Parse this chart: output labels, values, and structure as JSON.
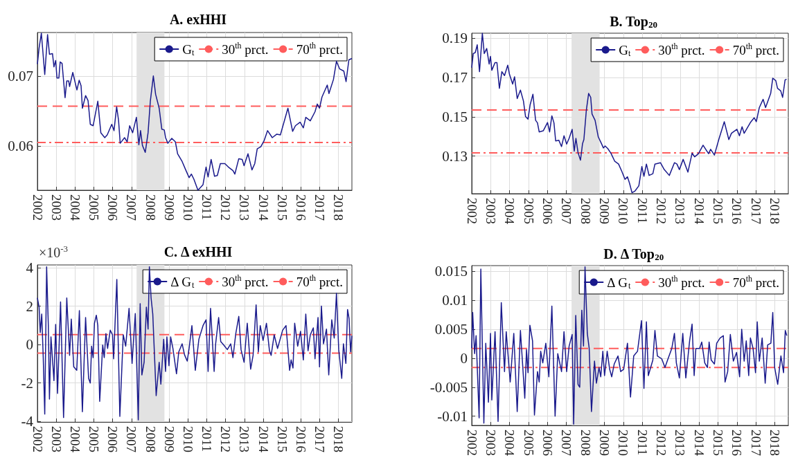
{
  "chart_data": [
    {
      "type": "line",
      "title": "A. exHHI",
      "xlim": [
        2002,
        2018.71
      ],
      "xticks": [
        2002,
        2003,
        2004,
        2005,
        2006,
        2007,
        2008,
        2009,
        2010,
        2011,
        2012,
        2013,
        2014,
        2015,
        2016,
        2017,
        2018
      ],
      "ylim": [
        0.0537,
        0.0762
      ],
      "yticks": [
        0.06,
        0.07
      ],
      "grid": true,
      "legend": "top right",
      "marker": "none",
      "series": [
        {
          "name": "G$_{t}$",
          "color": "#1a1a8c",
          "x": [
            2002.0,
            2002.09,
            2002.21,
            2002.39,
            2002.54,
            2002.64,
            2002.8,
            2002.88,
            2002.97,
            2003.04,
            2003.14,
            2003.21,
            2003.31,
            2003.47,
            2003.56,
            2003.66,
            2003.71,
            2003.88,
            2004.1,
            2004.22,
            2004.32,
            2004.39,
            2004.56,
            2004.69,
            2004.81,
            2004.96,
            2005.21,
            2005.37,
            2005.58,
            2005.71,
            2005.95,
            2006.07,
            2006.21,
            2006.31,
            2006.4,
            2006.63,
            2006.77,
            2006.9,
            2007.06,
            2007.26,
            2007.39,
            2007.48,
            2007.58,
            2007.73,
            2007.88,
            2008.0,
            2008.16,
            2008.28,
            2008.47,
            2008.61,
            2008.74,
            2008.81,
            2008.93,
            2009.14,
            2009.33,
            2009.45,
            2009.69,
            2009.88,
            2010.06,
            2010.18,
            2010.31,
            2010.53,
            2010.8,
            2010.96,
            2011.07,
            2011.23,
            2011.41,
            2011.56,
            2011.72,
            2011.96,
            2012.15,
            2012.39,
            2012.49,
            2012.7,
            2012.88,
            2012.98,
            2013.19,
            2013.4,
            2013.55,
            2013.68,
            2013.87,
            2014.05,
            2014.23,
            2014.48,
            2014.72,
            2014.91,
            2015.31,
            2015.56,
            2015.71,
            2015.96,
            2016.13,
            2016.26,
            2016.5,
            2016.75,
            2016.87,
            2016.99,
            2017.12,
            2017.4,
            2017.49,
            2017.73,
            2017.89,
            2018.06,
            2018.28,
            2018.4,
            2018.55,
            2018.71
          ],
          "values": [
            0.0717,
            0.074,
            0.0761,
            0.0702,
            0.0759,
            0.0731,
            0.0732,
            0.0713,
            0.0722,
            0.0697,
            0.0697,
            0.072,
            0.0718,
            0.0669,
            0.0693,
            0.0693,
            0.0685,
            0.0705,
            0.068,
            0.0694,
            0.0686,
            0.0654,
            0.0672,
            0.0665,
            0.0631,
            0.0629,
            0.0664,
            0.0619,
            0.0612,
            0.0616,
            0.0631,
            0.0622,
            0.0656,
            0.0637,
            0.0604,
            0.0612,
            0.0606,
            0.0629,
            0.0619,
            0.0641,
            0.0602,
            0.0622,
            0.0601,
            0.0591,
            0.0619,
            0.0664,
            0.07,
            0.0674,
            0.0654,
            0.0624,
            0.0623,
            0.0612,
            0.0604,
            0.0611,
            0.0606,
            0.0589,
            0.0578,
            0.0566,
            0.0555,
            0.056,
            0.0553,
            0.0537,
            0.0545,
            0.057,
            0.0556,
            0.0581,
            0.0557,
            0.0558,
            0.0575,
            0.0575,
            0.057,
            0.0565,
            0.056,
            0.0582,
            0.0581,
            0.0572,
            0.0589,
            0.0566,
            0.0575,
            0.0596,
            0.0599,
            0.0608,
            0.0622,
            0.0612,
            0.0617,
            0.0616,
            0.0654,
            0.0621,
            0.0629,
            0.0634,
            0.0626,
            0.0641,
            0.0636,
            0.0649,
            0.066,
            0.0654,
            0.067,
            0.0687,
            0.0675,
            0.0695,
            0.0721,
            0.071,
            0.0707,
            0.0692,
            0.0723,
            0.0725
          ]
        }
      ],
      "ref_lines": [
        {
          "axis": "y",
          "value": 0.0605,
          "label": "30$^{th}$ prct.",
          "color": "#ff5c5c",
          "line_style": "dashdot"
        },
        {
          "axis": "y",
          "value": 0.0657,
          "label": "70$^{th}$ prct.",
          "color": "#ff5c5c",
          "line_style": "dashed"
        }
      ],
      "bands": [
        {
          "axis": "x",
          "from": 2007.27,
          "to": 2008.75,
          "color": "#e2e2e2"
        }
      ]
    },
    {
      "type": "line",
      "title": "B. Top$_{20}$",
      "xlim": [
        2002,
        2018.71
      ],
      "xticks": [
        2002,
        2003,
        2004,
        2005,
        2006,
        2007,
        2008,
        2009,
        2010,
        2011,
        2012,
        2013,
        2014,
        2015,
        2016,
        2017,
        2018
      ],
      "ylim": [
        0.1108,
        0.1926
      ],
      "yticks": [
        0.13,
        0.15,
        0.17,
        0.19
      ],
      "grid": true,
      "legend": "top right",
      "marker": "none",
      "series": [
        {
          "name": "G$_{t}$",
          "color": "#1a1a8c",
          "x": [
            2002.0,
            2002.08,
            2002.19,
            2002.29,
            2002.41,
            2002.56,
            2002.66,
            2002.79,
            2002.92,
            2002.99,
            2003.06,
            2003.23,
            2003.33,
            2003.46,
            2003.59,
            2003.73,
            2003.9,
            2003.99,
            2004.16,
            2004.26,
            2004.4,
            2004.57,
            2004.73,
            2004.84,
            2004.97,
            2005.08,
            2005.23,
            2005.37,
            2005.47,
            2005.56,
            2005.78,
            2006.0,
            2006.11,
            2006.23,
            2006.34,
            2006.43,
            2006.6,
            2006.74,
            2006.87,
            2007.01,
            2007.14,
            2007.3,
            2007.41,
            2007.5,
            2007.61,
            2007.74,
            2007.85,
            2007.92,
            2008.05,
            2008.17,
            2008.28,
            2008.35,
            2008.51,
            2008.68,
            2008.81,
            2008.95,
            2009.04,
            2009.18,
            2009.35,
            2009.55,
            2009.75,
            2009.93,
            2010.09,
            2010.22,
            2010.33,
            2010.46,
            2010.62,
            2010.82,
            2010.98,
            2011.09,
            2011.22,
            2011.36,
            2011.56,
            2011.67,
            2011.96,
            2012.16,
            2012.43,
            2012.7,
            2012.83,
            2012.96,
            2013.16,
            2013.41,
            2013.63,
            2013.77,
            2013.97,
            2014.21,
            2014.5,
            2014.61,
            2014.81,
            2015.04,
            2015.33,
            2015.57,
            2015.71,
            2016.0,
            2016.13,
            2016.27,
            2016.38,
            2016.71,
            2016.91,
            2017.02,
            2017.18,
            2017.38,
            2017.51,
            2017.78,
            2017.89,
            2018.05,
            2018.14,
            2018.31,
            2018.41,
            2018.54,
            2018.62
          ],
          "values": [
            0.175,
            0.1822,
            0.1828,
            0.1867,
            0.173,
            0.1926,
            0.1822,
            0.1848,
            0.1769,
            0.1808,
            0.1737,
            0.1776,
            0.1776,
            0.1645,
            0.173,
            0.171,
            0.1763,
            0.1717,
            0.1667,
            0.1704,
            0.1593,
            0.1636,
            0.158,
            0.1501,
            0.1488,
            0.156,
            0.1615,
            0.1482,
            0.1469,
            0.1423,
            0.1429,
            0.1471,
            0.1423,
            0.1505,
            0.1469,
            0.1377,
            0.138,
            0.1348,
            0.1403,
            0.1361,
            0.139,
            0.1436,
            0.1325,
            0.139,
            0.1318,
            0.1279,
            0.1364,
            0.1384,
            0.1534,
            0.1619,
            0.1599,
            0.1514,
            0.1482,
            0.1397,
            0.1371,
            0.1341,
            0.1351,
            0.1338,
            0.1314,
            0.1273,
            0.1259,
            0.122,
            0.1181,
            0.1194,
            0.1161,
            0.1113,
            0.1122,
            0.1148,
            0.1246,
            0.1197,
            0.1259,
            0.1201,
            0.121,
            0.1259,
            0.1266,
            0.1231,
            0.1201,
            0.1266,
            0.1259,
            0.1231,
            0.1283,
            0.1218,
            0.1314,
            0.1296,
            0.1312,
            0.1355,
            0.1312,
            0.1334,
            0.1305,
            0.1384,
            0.1475,
            0.1384,
            0.1416,
            0.1436,
            0.1403,
            0.1449,
            0.1416,
            0.1471,
            0.1495,
            0.1475,
            0.1547,
            0.1589,
            0.1547,
            0.1619,
            0.1697,
            0.1684,
            0.1645,
            0.1632,
            0.1599,
            0.1688,
            0.1691
          ]
        }
      ],
      "ref_lines": [
        {
          "axis": "y",
          "value": 0.1316,
          "label": "30$^{th}$ prct.",
          "color": "#ff5c5c",
          "line_style": "dashdot"
        },
        {
          "axis": "y",
          "value": 0.1535,
          "label": "70$^{th}$ prct.",
          "color": "#ff5c5c",
          "line_style": "dashed"
        }
      ],
      "bands": [
        {
          "axis": "x",
          "from": 2007.27,
          "to": 2008.75,
          "color": "#e2e2e2"
        }
      ]
    },
    {
      "type": "line",
      "title": "C. Δ exHHI",
      "annotations": [
        "×10$^{-3}$"
      ],
      "xlim": [
        2002,
        2018.71
      ],
      "xticks": [
        2002,
        2003,
        2004,
        2005,
        2006,
        2007,
        2008,
        2009,
        2010,
        2011,
        2012,
        2013,
        2014,
        2015,
        2016,
        2017,
        2018
      ],
      "ylim": [
        -4.03,
        4.15
      ],
      "yticks": [
        -4,
        -2,
        0,
        2,
        4
      ],
      "grid": true,
      "legend": "top right",
      "marker": "none",
      "series": [
        {
          "name": "Δ G$_{t}$",
          "color": "#1a1a8c",
          "x": [
            2002.0,
            2002.09,
            2002.15,
            2002.23,
            2002.31,
            2002.39,
            2002.49,
            2002.58,
            2002.64,
            2002.72,
            2002.88,
            2002.97,
            2003.07,
            2003.23,
            2003.39,
            2003.56,
            2003.71,
            2003.8,
            2003.93,
            2004.09,
            2004.23,
            2004.39,
            2004.56,
            2004.72,
            2004.81,
            2004.88,
            2004.96,
            2005.03,
            2005.13,
            2005.21,
            2005.31,
            2005.47,
            2005.55,
            2005.64,
            2005.73,
            2005.87,
            2005.99,
            2006.05,
            2006.22,
            2006.38,
            2006.56,
            2006.69,
            2006.87,
            2007.03,
            2007.2,
            2007.36,
            2007.46,
            2007.55,
            2007.67,
            2007.79,
            2007.88,
            2007.95,
            2008.04,
            2008.13,
            2008.31,
            2008.47,
            2008.56,
            2008.71,
            2008.81,
            2008.88,
            2008.99,
            2009.08,
            2009.2,
            2009.39,
            2009.51,
            2009.69,
            2009.82,
            2009.96,
            2010.06,
            2010.21,
            2010.39,
            2010.58,
            2010.8,
            2010.96,
            2011.07,
            2011.2,
            2011.39,
            2011.47,
            2011.63,
            2011.74,
            2011.9,
            2012.09,
            2012.27,
            2012.39,
            2012.54,
            2012.7,
            2012.82,
            2012.98,
            2013.15,
            2013.33,
            2013.46,
            2013.62,
            2013.74,
            2013.84,
            2013.99,
            2014.17,
            2014.33,
            2014.42,
            2014.58,
            2014.76,
            2015.03,
            2015.21,
            2015.4,
            2015.48,
            2015.58,
            2015.67,
            2015.83,
            2015.98,
            2016.13,
            2016.26,
            2016.38,
            2016.5,
            2016.66,
            2016.75,
            2016.91,
            2016.99,
            2017.09,
            2017.2,
            2017.36,
            2017.48,
            2017.64,
            2017.77,
            2017.89,
            2018.01,
            2018.17,
            2018.26,
            2018.39,
            2018.48,
            2018.56,
            2018.64,
            2018.71
          ],
          "values": [
            2.43,
            1.95,
            0.63,
            1.59,
            -0.68,
            -3.62,
            4.05,
            0.99,
            -2.84,
            0.4,
            -1.88,
            1.05,
            -2.54,
            2.22,
            -3.8,
            2.43,
            -0.56,
            1.33,
            -1.16,
            -1.34,
            1.77,
            -3.5,
            1.41,
            -1.76,
            -2.0,
            -0.08,
            -0.68,
            1.11,
            1.53,
            0.99,
            -2.96,
            -0.02,
            -0.68,
            0.57,
            -0.2,
            0.75,
            0.51,
            -0.74,
            3.39,
            -3.74,
            0.51,
            -0.08,
            1.89,
            -0.98,
            1.62,
            -3.92,
            2.13,
            -1.58,
            -0.92,
            1.95,
            0.81,
            4.05,
            2.43,
            1.59,
            -2.66,
            -0.92,
            -2.06,
            0.28,
            -1.4,
            0.4,
            -1.1,
            0.4,
            -0.2,
            -1.52,
            -0.38,
            0.04,
            -0.54,
            -0.86,
            -0.2,
            0.99,
            -1.34,
            0.28,
            0.99,
            1.29,
            -1.4,
            1.89,
            -1.4,
            0.04,
            1.41,
            0.16,
            -0.02,
            -0.26,
            0.04,
            -0.68,
            0.57,
            1.47,
            -0.26,
            -0.92,
            1.11,
            -1.28,
            -0.56,
            2.07,
            -0.38,
            0.99,
            0.22,
            1.11,
            -0.32,
            -0.56,
            0.51,
            -0.2,
            0.75,
            0.99,
            -1.34,
            -0.8,
            -1.22,
            1.11,
            -0.08,
            0.69,
            -0.8,
            1.59,
            -0.32,
            0.51,
            0.87,
            -0.74,
            1.41,
            -1.16,
            2.01,
            0.04,
            0.81,
            -1.58,
            1.29,
            0.34,
            2.67,
            -0.26,
            -1.76,
            0.04,
            -0.98,
            1.83,
            1.35,
            -0.38,
            0.46
          ]
        }
      ],
      "ref_lines": [
        {
          "axis": "y",
          "value": -0.44,
          "label": "30$^{th}$ prct.",
          "color": "#ff5c5c",
          "line_style": "dashdot"
        },
        {
          "axis": "y",
          "value": 0.52,
          "label": "70$^{th}$ prct.",
          "color": "#ff5c5c",
          "line_style": "dashed"
        }
      ],
      "bands": [
        {
          "axis": "x",
          "from": 2007.27,
          "to": 2008.75,
          "color": "#e2e2e2"
        }
      ]
    },
    {
      "type": "line",
      "title": "D. Δ Top$_{20}$",
      "xlim": [
        2002,
        2018.71
      ],
      "xticks": [
        2002,
        2003,
        2004,
        2005,
        2006,
        2007,
        2008,
        2009,
        2010,
        2011,
        2012,
        2013,
        2014,
        2015,
        2016,
        2017,
        2018
      ],
      "ylim": [
        -0.0116,
        0.016
      ],
      "yticks": [
        -0.01,
        -0.005,
        0,
        0.005,
        0.01,
        0.015
      ],
      "grid": true,
      "legend": "top right",
      "marker": "none",
      "series": [
        {
          "name": "Δ G$_{t}$",
          "color": "#1a1a8c",
          "x": [
            2002.0,
            2002.05,
            2002.15,
            2002.23,
            2002.39,
            2002.48,
            2002.64,
            2002.74,
            2002.88,
            2002.99,
            2003.06,
            2003.23,
            2003.39,
            2003.56,
            2003.73,
            2003.82,
            2004.03,
            2004.22,
            2004.4,
            2004.57,
            2004.8,
            2004.89,
            2004.97,
            2005.07,
            2005.21,
            2005.31,
            2005.47,
            2005.56,
            2005.64,
            2005.75,
            2005.91,
            2006.07,
            2006.23,
            2006.4,
            2006.54,
            2006.74,
            2006.87,
            2007.01,
            2007.14,
            2007.3,
            2007.38,
            2007.49,
            2007.61,
            2007.7,
            2007.81,
            2007.9,
            2007.98,
            2008.1,
            2008.2,
            2008.32,
            2008.48,
            2008.58,
            2008.72,
            2008.81,
            2008.92,
            2009.01,
            2009.15,
            2009.28,
            2009.39,
            2009.52,
            2009.72,
            2009.86,
            2010.02,
            2010.22,
            2010.38,
            2010.55,
            2010.75,
            2010.96,
            2011.09,
            2011.22,
            2011.32,
            2011.56,
            2011.67,
            2011.8,
            2012.03,
            2012.2,
            2012.36,
            2012.56,
            2012.7,
            2012.8,
            2012.96,
            2013.14,
            2013.3,
            2013.5,
            2013.63,
            2013.74,
            2013.83,
            2014.03,
            2014.14,
            2014.3,
            2014.44,
            2014.53,
            2014.64,
            2014.81,
            2014.93,
            2015.11,
            2015.28,
            2015.37,
            2015.51,
            2015.65,
            2015.81,
            2015.98,
            2016.14,
            2016.25,
            2016.38,
            2016.49,
            2016.62,
            2016.71,
            2016.85,
            2016.98,
            2017.07,
            2017.18,
            2017.33,
            2017.49,
            2017.62,
            2017.79,
            2017.89,
            2017.99,
            2018.15,
            2018.32,
            2018.46,
            2018.55,
            2018.63
          ],
          "values": [
            0.0017,
            0.0079,
            0.0008,
            0.0039,
            -0.0103,
            0.0154,
            -0.0112,
            0.0026,
            -0.0076,
            0.0043,
            -0.0072,
            0.0046,
            -0.0109,
            0.0096,
            -0.0023,
            0.0046,
            -0.0041,
            0.0043,
            -0.0092,
            0.0048,
            -0.0069,
            0.0015,
            -0.0025,
            0.0057,
            0.003,
            -0.0098,
            -0.0023,
            -0.0041,
            0.0012,
            -0.0008,
            0.0026,
            -0.0032,
            0.009,
            -0.01,
            0.0008,
            -0.0023,
            0.0046,
            -0.0023,
            0.0021,
            0.0041,
            -0.0114,
            0.0074,
            -0.0045,
            -0.005,
            0.0083,
            0.0021,
            0.0158,
            0.0043,
            0.0017,
            -0.0092,
            -0.0005,
            -0.0043,
            -0.0016,
            -0.0032,
            0.0012,
            -0.003,
            0.0012,
            -0.0019,
            -0.0032,
            -0.001,
            0.0004,
            -0.0023,
            -0.0019,
            0.0026,
            -0.0067,
            0.0004,
            0.0012,
            0.0065,
            -0.0052,
            0.0063,
            -0.003,
            -0.0003,
            0.0048,
            0.0004,
            -0.0001,
            -0.0016,
            -0.0001,
            0.0017,
            0.0043,
            -0.0008,
            -0.0034,
            0.0043,
            -0.0034,
            0.003,
            0.0059,
            -0.003,
            0.0017,
            0.0017,
            0.0028,
            -0.0008,
            -0.0016,
            0.0028,
            -0.0003,
            -0.001,
            0.0026,
            0.0035,
            0.0039,
            -0.0041,
            -0.0023,
            0.0041,
            -0.0005,
            0.001,
            -0.0032,
            0.005,
            -0.0005,
            0.003,
            -0.003,
            0.0035,
            0.0017,
            -0.0025,
            0.0063,
            -0.0005,
            0.0035,
            -0.0043,
            0.0023,
            0.0026,
            0.0079,
            -0.0016,
            -0.0045,
            0.0004,
            -0.0025,
            0.0048,
            0.0039
          ]
        }
      ],
      "ref_lines": [
        {
          "axis": "y",
          "value": -0.0016,
          "label": "30$^{th}$ prct.",
          "color": "#ff5c5c",
          "line_style": "dashdot"
        },
        {
          "axis": "y",
          "value": 0.0017,
          "label": "70$^{th}$ prct.",
          "color": "#ff5c5c",
          "line_style": "dashed"
        }
      ],
      "bands": [
        {
          "axis": "x",
          "from": 2007.27,
          "to": 2008.75,
          "color": "#e2e2e2"
        }
      ]
    }
  ]
}
